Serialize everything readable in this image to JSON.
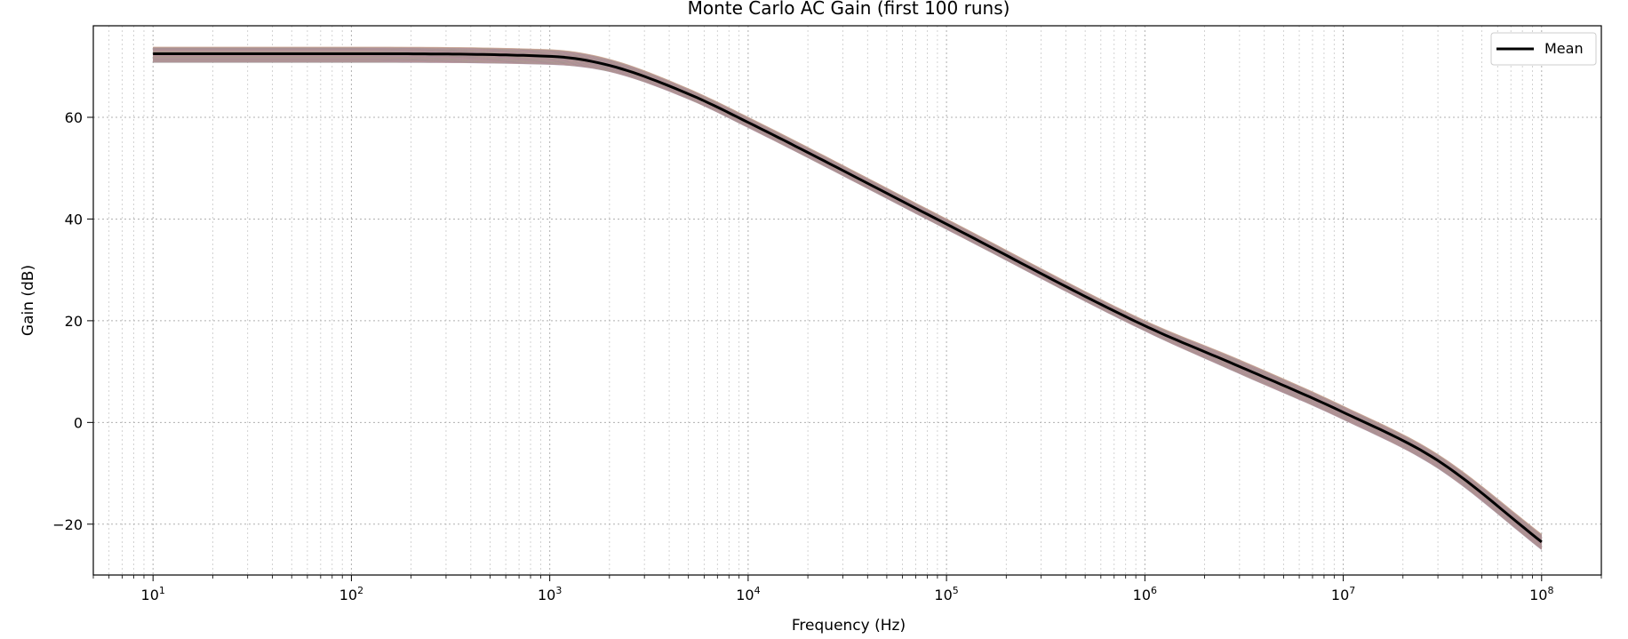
{
  "chart_data": {
    "type": "line",
    "title": "Monte Carlo AC Gain (first 100 runs)",
    "xlabel": "Frequency (Hz)",
    "ylabel": "Gain (dB)",
    "x_scale": "log",
    "xlim": [
      5,
      200000000
    ],
    "ylim": [
      -30,
      78
    ],
    "grid": true,
    "grid_minor": true,
    "legend_position": "top-right",
    "x_ticks": [
      {
        "value": 10,
        "label": "10",
        "exp": "1"
      },
      {
        "value": 100,
        "label": "10",
        "exp": "2"
      },
      {
        "value": 1000,
        "label": "10",
        "exp": "3"
      },
      {
        "value": 10000,
        "label": "10",
        "exp": "4"
      },
      {
        "value": 100000,
        "label": "10",
        "exp": "5"
      },
      {
        "value": 1000000,
        "label": "10",
        "exp": "6"
      },
      {
        "value": 10000000,
        "label": "10",
        "exp": "7"
      },
      {
        "value": 100000000,
        "label": "10",
        "exp": "8"
      }
    ],
    "y_ticks": [
      {
        "value": 60,
        "label": "60"
      },
      {
        "value": 40,
        "label": "40"
      },
      {
        "value": 20,
        "label": "20"
      },
      {
        "value": 0,
        "label": "0"
      },
      {
        "value": -20,
        "label": "−20"
      }
    ],
    "frequency_hz": [
      10,
      100,
      1000,
      2000,
      5000,
      10000,
      100000,
      1000000,
      3000000,
      10000000,
      30000000,
      100000000
    ],
    "series": [
      {
        "name": "Mean",
        "color": "#000000",
        "values": [
          72.5,
          72.5,
          72.0,
          70.2,
          64.6,
          59.0,
          39.0,
          19.0,
          11.0,
          2.0,
          -7.5,
          -23.5
        ]
      }
    ],
    "run_envelope": {
      "count": 100,
      "upper": [
        73.8,
        73.8,
        73.3,
        71.4,
        65.6,
        60.0,
        40.0,
        20.0,
        12.3,
        3.2,
        -6.3,
        -22.0
      ],
      "lower": [
        70.8,
        70.8,
        70.4,
        69.0,
        63.6,
        58.0,
        38.0,
        18.0,
        9.6,
        0.6,
        -9.0,
        -25.0
      ],
      "colors": [
        "#8b6bb0",
        "#c98a8a",
        "#6fae6f",
        "#e39ac8",
        "#c4a07a"
      ]
    }
  }
}
